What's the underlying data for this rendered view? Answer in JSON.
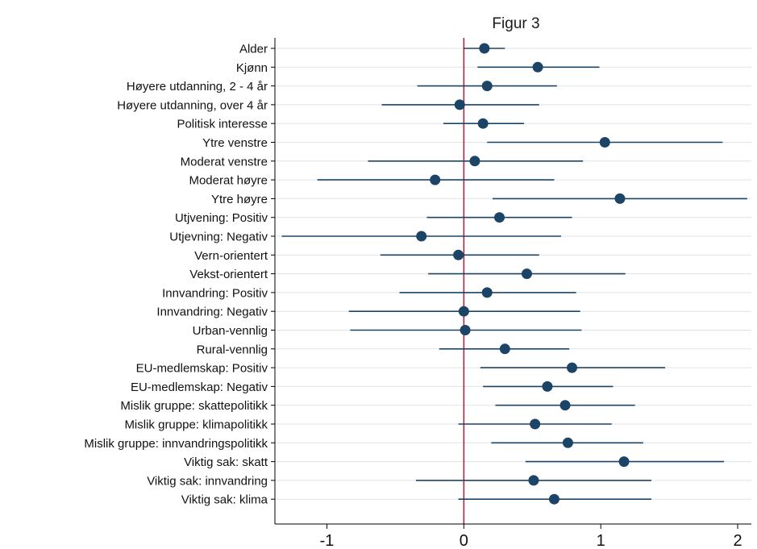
{
  "chart_data": {
    "type": "scatter",
    "title": "Figur 3",
    "xlabel": "",
    "ylabel": "",
    "xlim": [
      -1.38,
      2.1
    ],
    "xticks": [
      -1,
      0,
      1,
      2
    ],
    "xtick_labels": [
      "-1",
      "0",
      "1",
      "2"
    ],
    "reference_line": 0,
    "grid": true,
    "colors": {
      "point": "#1b4466",
      "ci_line": "#1b4466",
      "reference_line": "#a8283c",
      "grid": "#dce5ec",
      "axis": "#000000"
    },
    "rows": [
      {
        "label": "Alder",
        "estimate": 0.15,
        "ci": [
          0.0,
          0.3
        ]
      },
      {
        "label": "Kjønn",
        "estimate": 0.54,
        "ci": [
          0.1,
          0.99
        ]
      },
      {
        "label": "Høyere utdanning, 2 - 4 år",
        "estimate": 0.17,
        "ci": [
          -0.34,
          0.68
        ]
      },
      {
        "label": "Høyere utdanning, over 4 år",
        "estimate": -0.03,
        "ci": [
          -0.6,
          0.55
        ]
      },
      {
        "label": "Politisk interesse",
        "estimate": 0.14,
        "ci": [
          -0.15,
          0.44
        ]
      },
      {
        "label": "Ytre venstre",
        "estimate": 1.03,
        "ci": [
          0.17,
          1.89
        ]
      },
      {
        "label": "Moderat venstre",
        "estimate": 0.08,
        "ci": [
          -0.7,
          0.87
        ]
      },
      {
        "label": "Moderat høyre",
        "estimate": -0.21,
        "ci": [
          -1.07,
          0.66
        ]
      },
      {
        "label": "Ytre høyre",
        "estimate": 1.14,
        "ci": [
          0.21,
          2.07
        ]
      },
      {
        "label": "Utjvening: Positiv",
        "estimate": 0.26,
        "ci": [
          -0.27,
          0.79
        ]
      },
      {
        "label": "Utjevning: Negativ",
        "estimate": -0.31,
        "ci": [
          -1.33,
          0.71
        ]
      },
      {
        "label": "Vern-orientert",
        "estimate": -0.04,
        "ci": [
          -0.61,
          0.55
        ]
      },
      {
        "label": "Vekst-orientert",
        "estimate": 0.46,
        "ci": [
          -0.26,
          1.18
        ]
      },
      {
        "label": "Innvandring: Positiv",
        "estimate": 0.17,
        "ci": [
          -0.47,
          0.82
        ]
      },
      {
        "label": "Innvandring: Negativ",
        "estimate": 0.0,
        "ci": [
          -0.84,
          0.85
        ]
      },
      {
        "label": "Urban-vennlig",
        "estimate": 0.01,
        "ci": [
          -0.83,
          0.86
        ]
      },
      {
        "label": "Rural-vennlig",
        "estimate": 0.3,
        "ci": [
          -0.18,
          0.77
        ]
      },
      {
        "label": "EU-medlemskap: Positiv",
        "estimate": 0.79,
        "ci": [
          0.12,
          1.47
        ]
      },
      {
        "label": "EU-medlemskap: Negativ",
        "estimate": 0.61,
        "ci": [
          0.14,
          1.09
        ]
      },
      {
        "label": "Mislik gruppe: skattepolitikk",
        "estimate": 0.74,
        "ci": [
          0.23,
          1.25
        ]
      },
      {
        "label": "Mislik gruppe: klimapolitikk",
        "estimate": 0.52,
        "ci": [
          -0.04,
          1.08
        ]
      },
      {
        "label": "Mislik gruppe: innvandringspolitikk",
        "estimate": 0.76,
        "ci": [
          0.2,
          1.31
        ]
      },
      {
        "label": "Viktig sak: skatt",
        "estimate": 1.17,
        "ci": [
          0.45,
          1.9
        ]
      },
      {
        "label": "Viktig sak: innvandring",
        "estimate": 0.51,
        "ci": [
          -0.35,
          1.37
        ]
      },
      {
        "label": "Viktig sak: klima",
        "estimate": 0.66,
        "ci": [
          -0.04,
          1.37
        ]
      }
    ]
  }
}
